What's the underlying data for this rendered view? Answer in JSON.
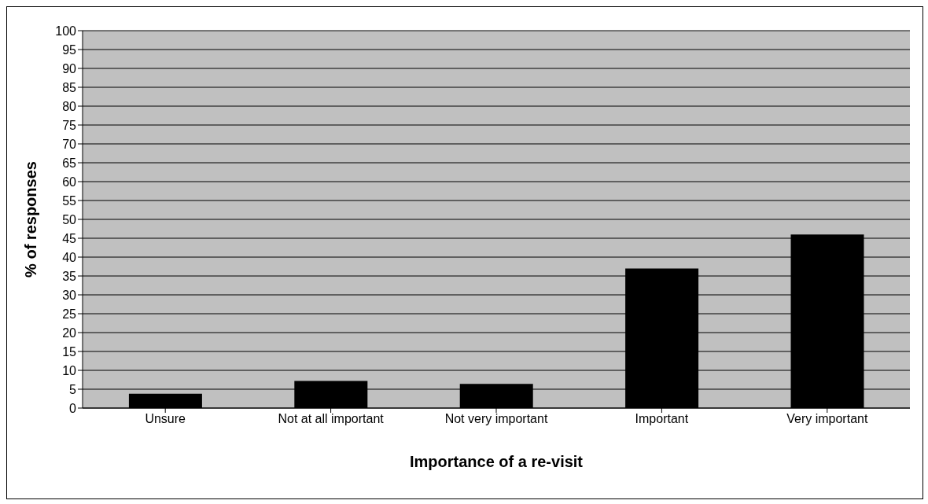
{
  "chart_data": {
    "type": "bar",
    "xlabel": "Importance of a re-visit",
    "ylabel": "% of responses",
    "categories": [
      "Unsure",
      "Not at all important",
      "Not very important",
      "Important",
      "Very important"
    ],
    "values": [
      3.8,
      7.2,
      6.4,
      37,
      46
    ],
    "color": "#000000",
    "ylim": [
      0,
      100
    ],
    "yticks": [
      0,
      5,
      10,
      15,
      20,
      25,
      30,
      35,
      40,
      45,
      50,
      55,
      60,
      65,
      70,
      75,
      80,
      85,
      90,
      95,
      100
    ],
    "grid": "y"
  }
}
